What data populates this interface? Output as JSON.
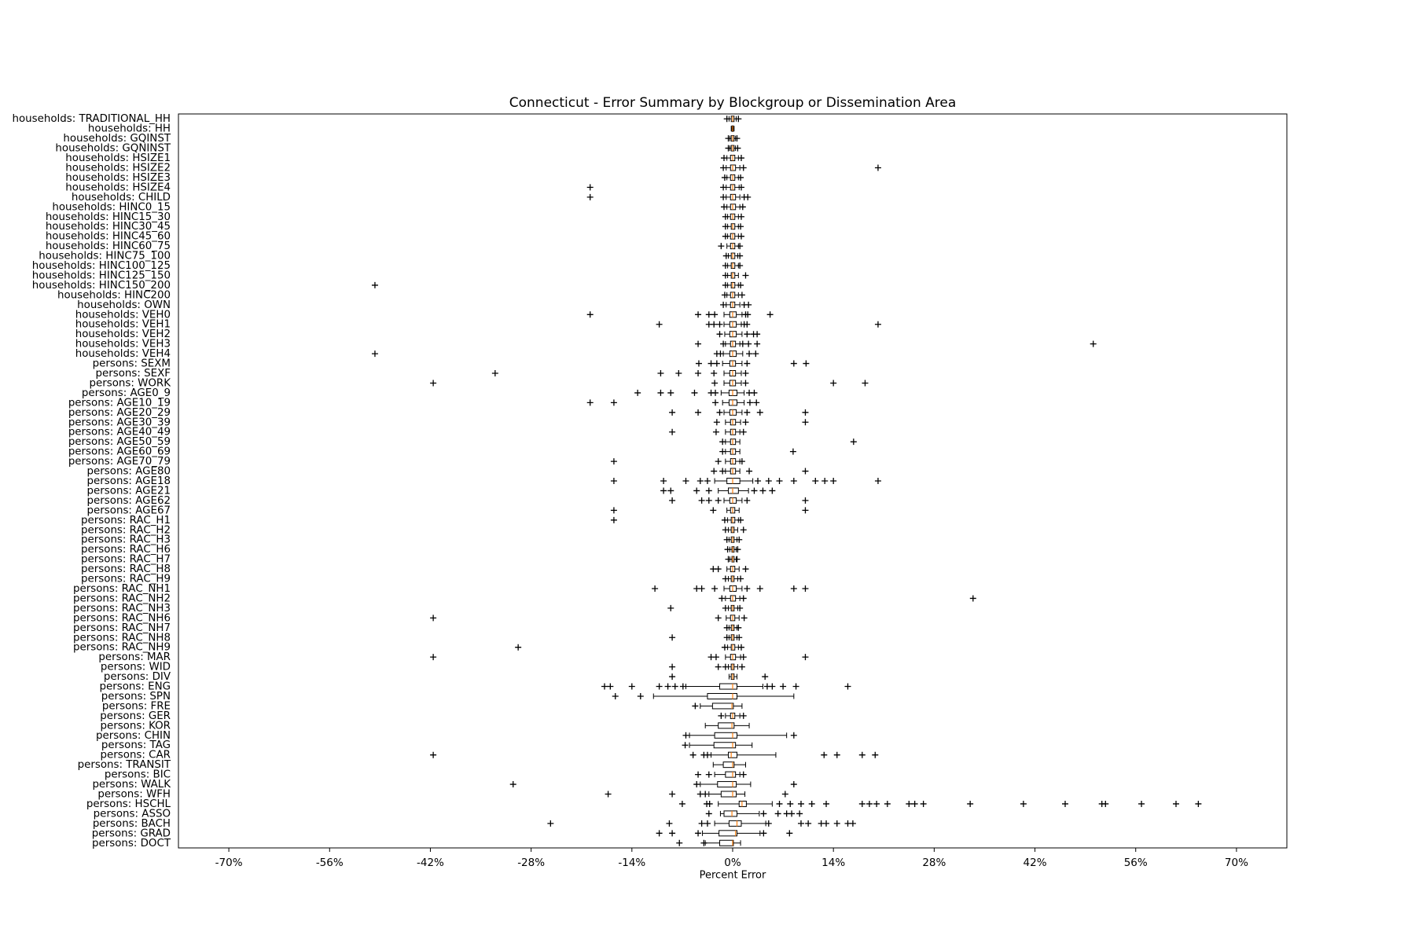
{
  "chart_data": {
    "type": "box",
    "title": "Connecticut - Error Summary by Blockgroup or Dissemination Area",
    "x_label": "Percent Error",
    "color": "#000000",
    "median_color": "#ff7f0e",
    "xlim": [
      -77,
      77
    ],
    "xticks": [
      {
        "value": -70,
        "label": "-70%"
      },
      {
        "value": -56,
        "label": "-56%"
      },
      {
        "value": -42,
        "label": "-42%"
      },
      {
        "value": -28,
        "label": "-28%"
      },
      {
        "value": -14,
        "label": "-14%"
      },
      {
        "value": 0,
        "label": "0%"
      },
      {
        "value": 14,
        "label": "14%"
      },
      {
        "value": 28,
        "label": "28%"
      },
      {
        "value": 42,
        "label": "42%"
      },
      {
        "value": 56,
        "label": "56%"
      },
      {
        "value": 70,
        "label": "70%"
      }
    ],
    "categories": [
      "households: TRADITIONAL_HH",
      "households: HH",
      "households: GQINST",
      "households: GQNINST",
      "households: HSIZE1",
      "households: HSIZE2",
      "households: HSIZE3",
      "households: HSIZE4",
      "households: CHILD",
      "households: HINC0_15",
      "households: HINC15_30",
      "households: HINC30_45",
      "households: HINC45_60",
      "households: HINC60_75",
      "households: HINC75_100",
      "households: HINC100_125",
      "households: HINC125_150",
      "households: HINC150_200",
      "households: HINC200",
      "households: OWN",
      "households: VEH0",
      "households: VEH1",
      "households: VEH2",
      "households: VEH3",
      "households: VEH4",
      "persons: SEXM",
      "persons: SEXF",
      "persons: WORK",
      "persons: AGE0_9",
      "persons: AGE10_19",
      "persons: AGE20_29",
      "persons: AGE30_39",
      "persons: AGE40_49",
      "persons: AGE50_59",
      "persons: AGE60_69",
      "persons: AGE70_79",
      "persons: AGE80",
      "persons: AGE18",
      "persons: AGE21",
      "persons: AGE62",
      "persons: AGE67",
      "persons: RAC_H1",
      "persons: RAC_H2",
      "persons: RAC_H3",
      "persons: RAC_H6",
      "persons: RAC_H7",
      "persons: RAC_H8",
      "persons: RAC_H9",
      "persons: RAC_NH1",
      "persons: RAC_NH2",
      "persons: RAC_NH3",
      "persons: RAC_NH6",
      "persons: RAC_NH7",
      "persons: RAC_NH8",
      "persons: RAC_NH9",
      "persons: MAR",
      "persons: WID",
      "persons: DIV",
      "persons: ENG",
      "persons: SPN",
      "persons: FRE",
      "persons: GER",
      "persons: KOR",
      "persons: CHIN",
      "persons: TAG",
      "persons: CAR",
      "persons: TRANSIT",
      "persons: BIC",
      "persons: WALK",
      "persons: WFH",
      "persons: HSCHL",
      "persons: ASSO",
      "persons: BACH",
      "persons: GRAD",
      "persons: DOCT"
    ],
    "boxes": [
      {
        "whislo": -0.5,
        "q1": -0.2,
        "median": 0,
        "q3": 0.2,
        "whishi": 0.5,
        "fliers": [
          -0.8,
          0.8
        ]
      },
      {
        "whislo": -0.2,
        "q1": -0.1,
        "median": 0,
        "q3": 0.1,
        "whishi": 0.2,
        "fliers": []
      },
      {
        "whislo": -0.4,
        "q1": -0.2,
        "median": 0,
        "q3": 0.2,
        "whishi": 0.4,
        "fliers": [
          -0.6,
          0.6
        ]
      },
      {
        "whislo": -0.4,
        "q1": -0.2,
        "median": 0,
        "q3": 0.2,
        "whishi": 0.4,
        "fliers": [
          -0.6,
          0.7
        ]
      },
      {
        "whislo": -0.8,
        "q1": -0.3,
        "median": 0,
        "q3": 0.3,
        "whishi": 0.8,
        "fliers": [
          -1.2,
          1.2
        ]
      },
      {
        "whislo": -0.9,
        "q1": -0.3,
        "median": 0,
        "q3": 0.4,
        "whishi": 1,
        "fliers": [
          -1.3,
          1.5,
          20.2
        ]
      },
      {
        "whislo": -0.8,
        "q1": -0.3,
        "median": 0,
        "q3": 0.3,
        "whishi": 0.8,
        "fliers": [
          -1.1,
          1.1
        ]
      },
      {
        "whislo": -0.9,
        "q1": -0.3,
        "median": 0,
        "q3": 0.3,
        "whishi": 0.9,
        "fliers": [
          -19.8,
          -1.3,
          1.2
        ]
      },
      {
        "whislo": -0.9,
        "q1": -0.3,
        "median": 0,
        "q3": 0.4,
        "whishi": 1,
        "fliers": [
          -19.8,
          -1.3,
          1.6,
          2.1
        ]
      },
      {
        "whislo": -0.8,
        "q1": -0.3,
        "median": 0,
        "q3": 0.4,
        "whishi": 1,
        "fliers": [
          -1.2,
          1.4
        ]
      },
      {
        "whislo": -0.7,
        "q1": -0.3,
        "median": 0,
        "q3": 0.3,
        "whishi": 0.8,
        "fliers": [
          -1,
          1.2
        ]
      },
      {
        "whislo": -0.7,
        "q1": -0.2,
        "median": 0,
        "q3": 0.3,
        "whishi": 0.8,
        "fliers": [
          -1,
          1.1
        ]
      },
      {
        "whislo": -0.7,
        "q1": -0.3,
        "median": 0,
        "q3": 0.3,
        "whishi": 0.8,
        "fliers": [
          -1,
          1.2
        ]
      },
      {
        "whislo": -0.8,
        "q1": -0.3,
        "median": 0,
        "q3": 0.3,
        "whishi": 0.8,
        "fliers": [
          -1.6,
          1
        ]
      },
      {
        "whislo": -0.6,
        "q1": -0.2,
        "median": 0,
        "q3": 0.3,
        "whishi": 0.7,
        "fliers": [
          -0.9,
          1
        ]
      },
      {
        "whislo": -0.7,
        "q1": -0.2,
        "median": 0,
        "q3": 0.3,
        "whishi": 0.8,
        "fliers": [
          -1,
          1
        ]
      },
      {
        "whislo": -0.7,
        "q1": -0.2,
        "median": 0,
        "q3": 0.3,
        "whishi": 0.8,
        "fliers": [
          -1,
          1.8
        ]
      },
      {
        "whislo": -0.7,
        "q1": -0.2,
        "median": 0,
        "q3": 0.3,
        "whishi": 0.8,
        "fliers": [
          -49.7,
          -1,
          1.1
        ]
      },
      {
        "whislo": -0.8,
        "q1": -0.3,
        "median": 0,
        "q3": 0.3,
        "whishi": 0.8,
        "fliers": [
          -1.1,
          1.3
        ]
      },
      {
        "whislo": -0.9,
        "q1": -0.3,
        "median": 0,
        "q3": 0.3,
        "whishi": 1,
        "fliers": [
          -1.3,
          1.6,
          2.2
        ]
      },
      {
        "whislo": -1.2,
        "q1": -0.4,
        "median": 0,
        "q3": 0.5,
        "whishi": 1.3,
        "fliers": [
          -19.8,
          -4.8,
          -3.3,
          -2.5,
          1.8,
          2.1,
          5.2
        ]
      },
      {
        "whislo": -1.2,
        "q1": -0.4,
        "median": 0,
        "q3": 0.5,
        "whishi": 1.2,
        "fliers": [
          -10.2,
          -3.3,
          -2.6,
          -1.8,
          1.6,
          2,
          20.2
        ]
      },
      {
        "whislo": -1.1,
        "q1": -0.4,
        "median": 0,
        "q3": 0.5,
        "whishi": 1.3,
        "fliers": [
          -1.8,
          2,
          2.9,
          3.4
        ]
      },
      {
        "whislo": -1,
        "q1": -0.3,
        "median": 0,
        "q3": 0.4,
        "whishi": 1,
        "fliers": [
          -4.8,
          -1.3,
          1.4,
          2.2,
          3.4,
          50.1
        ]
      },
      {
        "whislo": -1.3,
        "q1": -0.4,
        "median": 0,
        "q3": 0.5,
        "whishi": 1.4,
        "fliers": [
          -49.7,
          -2.2,
          -1.7,
          2.3,
          3.2
        ]
      },
      {
        "whislo": -1.4,
        "q1": -0.4,
        "median": 0,
        "q3": 0.4,
        "whishi": 1.3,
        "fliers": [
          -4.7,
          -3,
          -2.2,
          2,
          8.5,
          10.2
        ]
      },
      {
        "whislo": -1.2,
        "q1": -0.4,
        "median": 0,
        "q3": 0.4,
        "whishi": 1.2,
        "fliers": [
          -33,
          -10,
          -7.5,
          -4.8,
          -2.6,
          1.8
        ]
      },
      {
        "whislo": -1.2,
        "q1": -0.4,
        "median": 0,
        "q3": 0.4,
        "whishi": 1.2,
        "fliers": [
          -41.6,
          -2.5,
          1.8,
          14,
          18.4
        ]
      },
      {
        "whislo": -1.6,
        "q1": -0.5,
        "median": 0,
        "q3": 0.6,
        "whishi": 1.6,
        "fliers": [
          -13.2,
          -10,
          -8.6,
          -5.3,
          -3,
          -2.4,
          2.3,
          3
        ]
      },
      {
        "whislo": -1.4,
        "q1": -0.5,
        "median": 0,
        "q3": 0.6,
        "whishi": 1.6,
        "fliers": [
          -19.8,
          -16.5,
          -2.4,
          2.4,
          3.3
        ]
      },
      {
        "whislo": -1.2,
        "q1": -0.4,
        "median": 0,
        "q3": 0.5,
        "whishi": 1.3,
        "fliers": [
          -8.4,
          -4.8,
          -1.8,
          2,
          3.8,
          10.1
        ]
      },
      {
        "whislo": -1,
        "q1": -0.3,
        "median": 0,
        "q3": 0.4,
        "whishi": 1.1,
        "fliers": [
          -2.2,
          1.8,
          10.1
        ]
      },
      {
        "whislo": -1,
        "q1": -0.3,
        "median": 0,
        "q3": 0.4,
        "whishi": 1,
        "fliers": [
          -8.4,
          -2.3,
          1.5
        ]
      },
      {
        "whislo": -1,
        "q1": -0.3,
        "median": 0,
        "q3": 0.4,
        "whishi": 1,
        "fliers": [
          -1.4,
          16.8
        ]
      },
      {
        "whislo": -1,
        "q1": -0.3,
        "median": 0,
        "q3": 0.4,
        "whishi": 1,
        "fliers": [
          -1.4,
          8.4
        ]
      },
      {
        "whislo": -1,
        "q1": -0.3,
        "median": 0,
        "q3": 0.4,
        "whishi": 1,
        "fliers": [
          -16.5,
          -2,
          1.3
        ]
      },
      {
        "whislo": -1,
        "q1": -0.3,
        "median": 0,
        "q3": 0.4,
        "whishi": 1,
        "fliers": [
          -2.6,
          -1.4,
          2.3,
          10.1
        ]
      },
      {
        "whislo": -2.5,
        "q1": -0.8,
        "median": 0,
        "q3": 1,
        "whishi": 2.8,
        "fliers": [
          -16.5,
          -9.6,
          -6.5,
          -4.5,
          -3.5,
          3.5,
          5,
          6.5,
          8.5,
          11.5,
          12.8,
          14,
          20.2
        ]
      },
      {
        "whislo": -2,
        "q1": -0.6,
        "median": 0,
        "q3": 0.8,
        "whishi": 2.2,
        "fliers": [
          -9.6,
          -8.6,
          -5,
          -3.3,
          3,
          4.2,
          5.5
        ]
      },
      {
        "whislo": -1.2,
        "q1": -0.4,
        "median": 0,
        "q3": 0.5,
        "whishi": 1.3,
        "fliers": [
          -8.4,
          -4.3,
          -3.3,
          -2,
          2,
          10.1
        ]
      },
      {
        "whislo": -0.8,
        "q1": -0.3,
        "median": 0,
        "q3": 0.3,
        "whishi": 0.9,
        "fliers": [
          -16.5,
          -2.7,
          10.1
        ]
      },
      {
        "whislo": -0.7,
        "q1": -0.2,
        "median": 0,
        "q3": 0.3,
        "whishi": 0.8,
        "fliers": [
          -16.5,
          -1.1,
          1.1
        ]
      },
      {
        "whislo": -0.6,
        "q1": -0.2,
        "median": 0,
        "q3": 0.2,
        "whishi": 0.7,
        "fliers": [
          -1,
          1.5
        ]
      },
      {
        "whislo": -0.5,
        "q1": -0.2,
        "median": 0,
        "q3": 0.2,
        "whishi": 0.6,
        "fliers": [
          -0.8,
          0.9
        ]
      },
      {
        "whislo": -0.4,
        "q1": -0.1,
        "median": 0,
        "q3": 0.2,
        "whishi": 0.5,
        "fliers": [
          -0.7,
          0.7
        ]
      },
      {
        "whislo": -0.4,
        "q1": -0.1,
        "median": 0,
        "q3": 0.2,
        "whishi": 0.5,
        "fliers": [
          -0.6,
          0.6
        ]
      },
      {
        "whislo": -0.8,
        "q1": -0.3,
        "median": 0,
        "q3": 0.3,
        "whishi": 0.9,
        "fliers": [
          -2.7,
          -2,
          1.8
        ]
      },
      {
        "whislo": -0.6,
        "q1": -0.2,
        "median": 0,
        "q3": 0.2,
        "whishi": 0.7,
        "fliers": [
          -1,
          1.1
        ]
      },
      {
        "whislo": -1.2,
        "q1": -0.4,
        "median": 0,
        "q3": 0.5,
        "whishi": 1.3,
        "fliers": [
          -10.8,
          -5,
          -4.3,
          -2.5,
          2,
          3.8,
          8.5,
          10.1
        ]
      },
      {
        "whislo": -1,
        "q1": -0.3,
        "median": 0,
        "q3": 0.4,
        "whishi": 1,
        "fliers": [
          -1.5,
          1.5,
          33.4
        ]
      },
      {
        "whislo": -0.6,
        "q1": -0.2,
        "median": 0,
        "q3": 0.2,
        "whishi": 0.7,
        "fliers": [
          -8.6,
          -1,
          1
        ]
      },
      {
        "whislo": -0.9,
        "q1": -0.3,
        "median": 0,
        "q3": 0.3,
        "whishi": 0.9,
        "fliers": [
          -41.6,
          -2,
          1.6
        ]
      },
      {
        "whislo": -0.5,
        "q1": -0.2,
        "median": 0,
        "q3": 0.2,
        "whishi": 0.6,
        "fliers": [
          -0.8,
          0.8
        ]
      },
      {
        "whislo": -0.5,
        "q1": -0.2,
        "median": 0,
        "q3": 0.2,
        "whishi": 0.6,
        "fliers": [
          -8.4,
          -0.8,
          0.9
        ]
      },
      {
        "whislo": -0.7,
        "q1": -0.2,
        "median": 0,
        "q3": 0.3,
        "whishi": 0.8,
        "fliers": [
          -29.8,
          -1.1,
          1.2
        ]
      },
      {
        "whislo": -1,
        "q1": -0.3,
        "median": 0,
        "q3": 0.4,
        "whishi": 1.1,
        "fliers": [
          -41.6,
          -3,
          -2.3,
          1.5,
          10.1
        ]
      },
      {
        "whislo": -0.6,
        "q1": -0.2,
        "median": 0,
        "q3": 0.2,
        "whishi": 0.7,
        "fliers": [
          -8.4,
          -2,
          -1,
          1.3
        ]
      },
      {
        "whislo": -0.5,
        "q1": -0.2,
        "median": 0,
        "q3": 0.2,
        "whishi": 0.6,
        "fliers": [
          -8.4,
          4.5
        ]
      },
      {
        "whislo": -6.5,
        "q1": -1.8,
        "median": 0,
        "q3": 0.6,
        "whishi": 4.2,
        "fliers": [
          -17.8,
          -17,
          -14,
          -10.2,
          -9,
          -8,
          -6.9,
          4.8,
          5.5,
          7,
          8.8,
          16
        ]
      },
      {
        "whislo": -11,
        "q1": -3.5,
        "median": 0,
        "q3": 0.6,
        "whishi": 8.5,
        "fliers": [
          -16.3,
          -12.8
        ]
      },
      {
        "whislo": -4.5,
        "q1": -2.8,
        "median": -0.1,
        "q3": 0.1,
        "whishi": 1.3,
        "fliers": [
          -5.2
        ]
      },
      {
        "whislo": -1,
        "q1": -0.3,
        "median": 0,
        "q3": 0.3,
        "whishi": 1,
        "fliers": [
          -1.6,
          1.5
        ]
      },
      {
        "whislo": -3.8,
        "q1": -2,
        "median": -0.1,
        "q3": 0.2,
        "whishi": 2.3,
        "fliers": []
      },
      {
        "whislo": -6,
        "q1": -2.5,
        "median": 0,
        "q3": 0.6,
        "whishi": 7.5,
        "fliers": [
          -6.5,
          8.5
        ]
      },
      {
        "whislo": -6,
        "q1": -2.6,
        "median": 0,
        "q3": 0.4,
        "whishi": 2.7,
        "fliers": [
          -6.6
        ]
      },
      {
        "whislo": -3,
        "q1": -0.6,
        "median": -0.2,
        "q3": 0.6,
        "whishi": 6,
        "fliers": [
          -41.6,
          -5.5,
          -4,
          -3.5,
          12.7,
          14.5,
          18,
          19.8
        ]
      },
      {
        "whislo": -2.7,
        "q1": -1.3,
        "median": 0,
        "q3": 0.2,
        "whishi": 1.8,
        "fliers": []
      },
      {
        "whislo": -2.5,
        "q1": -1,
        "median": 0,
        "q3": 0.4,
        "whishi": 1,
        "fliers": [
          -4.8,
          -3.3,
          1.5
        ]
      },
      {
        "whislo": -4.5,
        "q1": -2.1,
        "median": 0,
        "q3": 0.5,
        "whishi": 2.5,
        "fliers": [
          -30.5,
          -5,
          8.5
        ]
      },
      {
        "whislo": -3.3,
        "q1": -1.6,
        "median": 0,
        "q3": 0.5,
        "whishi": 1.7,
        "fliers": [
          -17.3,
          -8.4,
          -4.5,
          -3.8,
          7.3
        ]
      },
      {
        "whislo": -2,
        "q1": 0.9,
        "median": 1.3,
        "q3": 1.9,
        "whishi": 5.5,
        "fliers": [
          -7,
          -3.6,
          -3.2,
          6.5,
          8,
          9.5,
          11,
          13,
          18,
          19,
          20,
          21.5,
          24.5,
          25.3,
          26.5,
          33,
          40.4,
          46.2,
          51.3,
          51.8,
          56.8,
          61.6,
          64.7
        ]
      },
      {
        "whislo": -1.7,
        "q1": -1.2,
        "median": -0.1,
        "q3": 0.6,
        "whishi": 3.7,
        "fliers": [
          -3.3,
          4.3,
          6.3,
          7.5,
          8.2,
          9.3
        ]
      },
      {
        "whislo": -2.5,
        "q1": -0.5,
        "median": 0.6,
        "q3": 1.2,
        "whishi": 4.6,
        "fliers": [
          -25.3,
          -8.8,
          -4.3,
          -3.5,
          5,
          9.5,
          10.5,
          12.3,
          13,
          14.5,
          16,
          16.7
        ]
      },
      {
        "whislo": -4.2,
        "q1": -1.9,
        "median": 0.4,
        "q3": 0.6,
        "whishi": 3.8,
        "fliers": [
          -10.2,
          -8.4,
          -4.8,
          4.3,
          7.9
        ]
      },
      {
        "whislo": -3.8,
        "q1": -1.8,
        "median": 0,
        "q3": 0.1,
        "whishi": 1.1,
        "fliers": [
          -7.4,
          -4
        ]
      }
    ]
  }
}
